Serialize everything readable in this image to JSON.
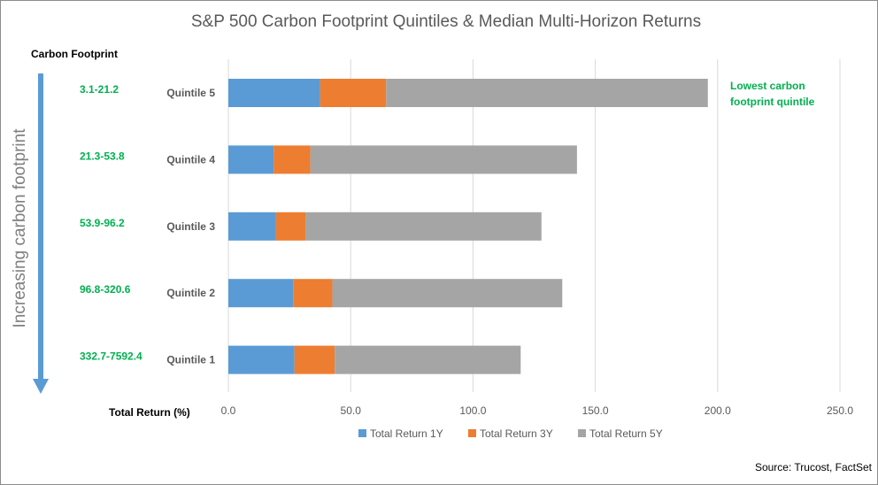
{
  "chart_data": {
    "type": "bar",
    "orientation": "horizontal",
    "stacked": true,
    "title": "S&P 500 Carbon Footprint Quintiles & Median Multi-Horizon Returns",
    "xlabel": "Total Return (%)",
    "ylabel": "Carbon Footprint",
    "xlim": [
      0,
      250
    ],
    "xticks": [
      0,
      50,
      100,
      150,
      200,
      250
    ],
    "xtick_labels": [
      "0.0",
      "50.0",
      "100.0",
      "150.0",
      "200.0",
      "250.0"
    ],
    "grid": true,
    "legend_position": "bottom",
    "categories": [
      "Quintile 5",
      "Quintile 4",
      "Quintile 3",
      "Quintile 2",
      "Quintile 1"
    ],
    "carbon_ranges": [
      "3.1-21.2",
      "21.3-53.8",
      "53.9-96.2",
      "96.8-320.6",
      "332.7-7592.4"
    ],
    "series": [
      {
        "name": "Total Return 1Y",
        "color": "#5b9bd5",
        "values": [
          37.5,
          18.5,
          19.5,
          26.5,
          27.0
        ]
      },
      {
        "name": "Total Return 3Y",
        "color": "#ed7d31",
        "values": [
          27.0,
          15.0,
          12.0,
          16.0,
          16.5
        ]
      },
      {
        "name": "Total Return 5Y",
        "color": "#a5a5a5",
        "values": [
          131.5,
          109.0,
          96.5,
          94.0,
          76.0
        ]
      }
    ]
  },
  "side_label": "Increasing carbon footprint",
  "side_arrow_color": "#5b9bd5",
  "annotation": {
    "line1": "Lowest carbon",
    "line2": "footprint quintile"
  },
  "source": "Source: Trucost, FactSet"
}
